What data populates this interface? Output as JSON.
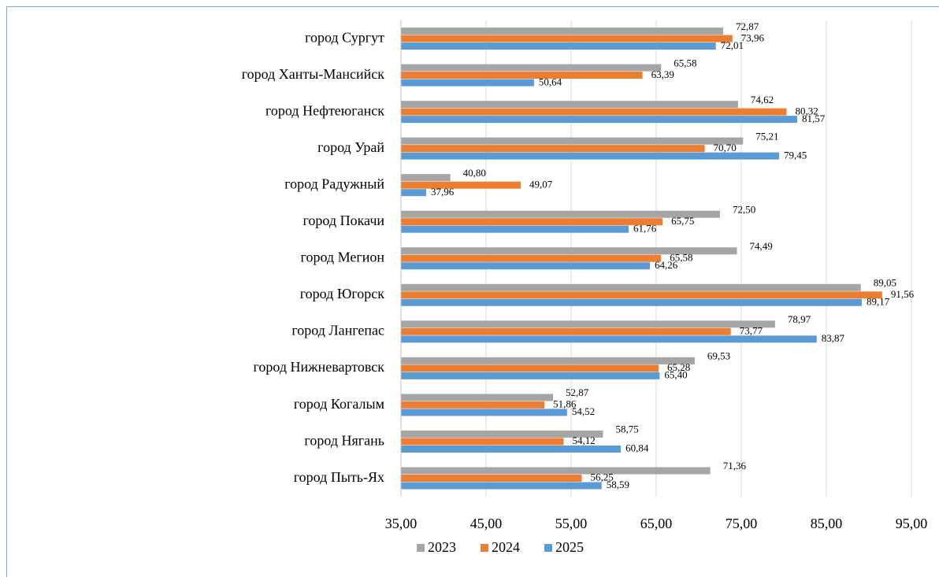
{
  "chart_data": {
    "type": "bar",
    "orientation": "horizontal",
    "categories": [
      "город Сургут",
      "город Ханты-Мансийск",
      "город Нефтеюганск",
      "город Урай",
      "город Радужный",
      "город Покачи",
      "город Мегион",
      "город Югорск",
      "город Лангепас",
      "город Нижневартовск",
      "город Когалым",
      "город Нягань",
      "город Пыть-Ях"
    ],
    "series": [
      {
        "name": "2023",
        "color": "#a5a5a5",
        "label_color": "#000000",
        "values": [
          72.87,
          65.58,
          74.62,
          75.21,
          40.8,
          72.5,
          74.49,
          89.05,
          78.97,
          69.53,
          52.87,
          58.75,
          71.36
        ],
        "value_labels": [
          "72,87",
          "65,58",
          "74,62",
          "75,21",
          "40,80",
          "72,50",
          "74,49",
          "89,05",
          "78,97",
          "69,53",
          "52,87",
          "58,75",
          "71,36"
        ]
      },
      {
        "name": "2024",
        "color": "#ed7d31",
        "label_color": "#595959",
        "values": [
          73.96,
          63.39,
          80.32,
          70.7,
          49.07,
          65.75,
          65.58,
          91.56,
          73.77,
          65.28,
          51.86,
          54.12,
          56.25
        ],
        "value_labels": [
          "73,96",
          "63,39",
          "80,32",
          "70,70",
          "49,07",
          "65,75",
          "65,58",
          "91,56",
          "73,77",
          "65,28",
          "51,86",
          "54,12",
          "56,25"
        ]
      },
      {
        "name": "2025",
        "color": "#5b9bd5",
        "label_color": "#595959",
        "values": [
          72.01,
          50.64,
          81.57,
          79.45,
          37.96,
          61.76,
          64.26,
          89.17,
          83.87,
          65.4,
          54.52,
          60.84,
          58.59
        ],
        "value_labels": [
          "72,01",
          "50,64",
          "81,57",
          "79,45",
          "37,96",
          "61,76",
          "64,26",
          "89,17",
          "83,87",
          "65,40",
          "54,52",
          "60,84",
          "58,59"
        ]
      }
    ],
    "xlim": [
      35,
      95
    ],
    "xticks": [
      {
        "value": 35,
        "label": "35,00"
      },
      {
        "value": 45,
        "label": "45,00"
      },
      {
        "value": 55,
        "label": "55,00"
      },
      {
        "value": 65,
        "label": "65,00"
      },
      {
        "value": 75,
        "label": "75,00"
      },
      {
        "value": 85,
        "label": "85,00"
      },
      {
        "value": 95,
        "label": "95,00"
      }
    ],
    "grid": true,
    "legend": "bottom"
  }
}
